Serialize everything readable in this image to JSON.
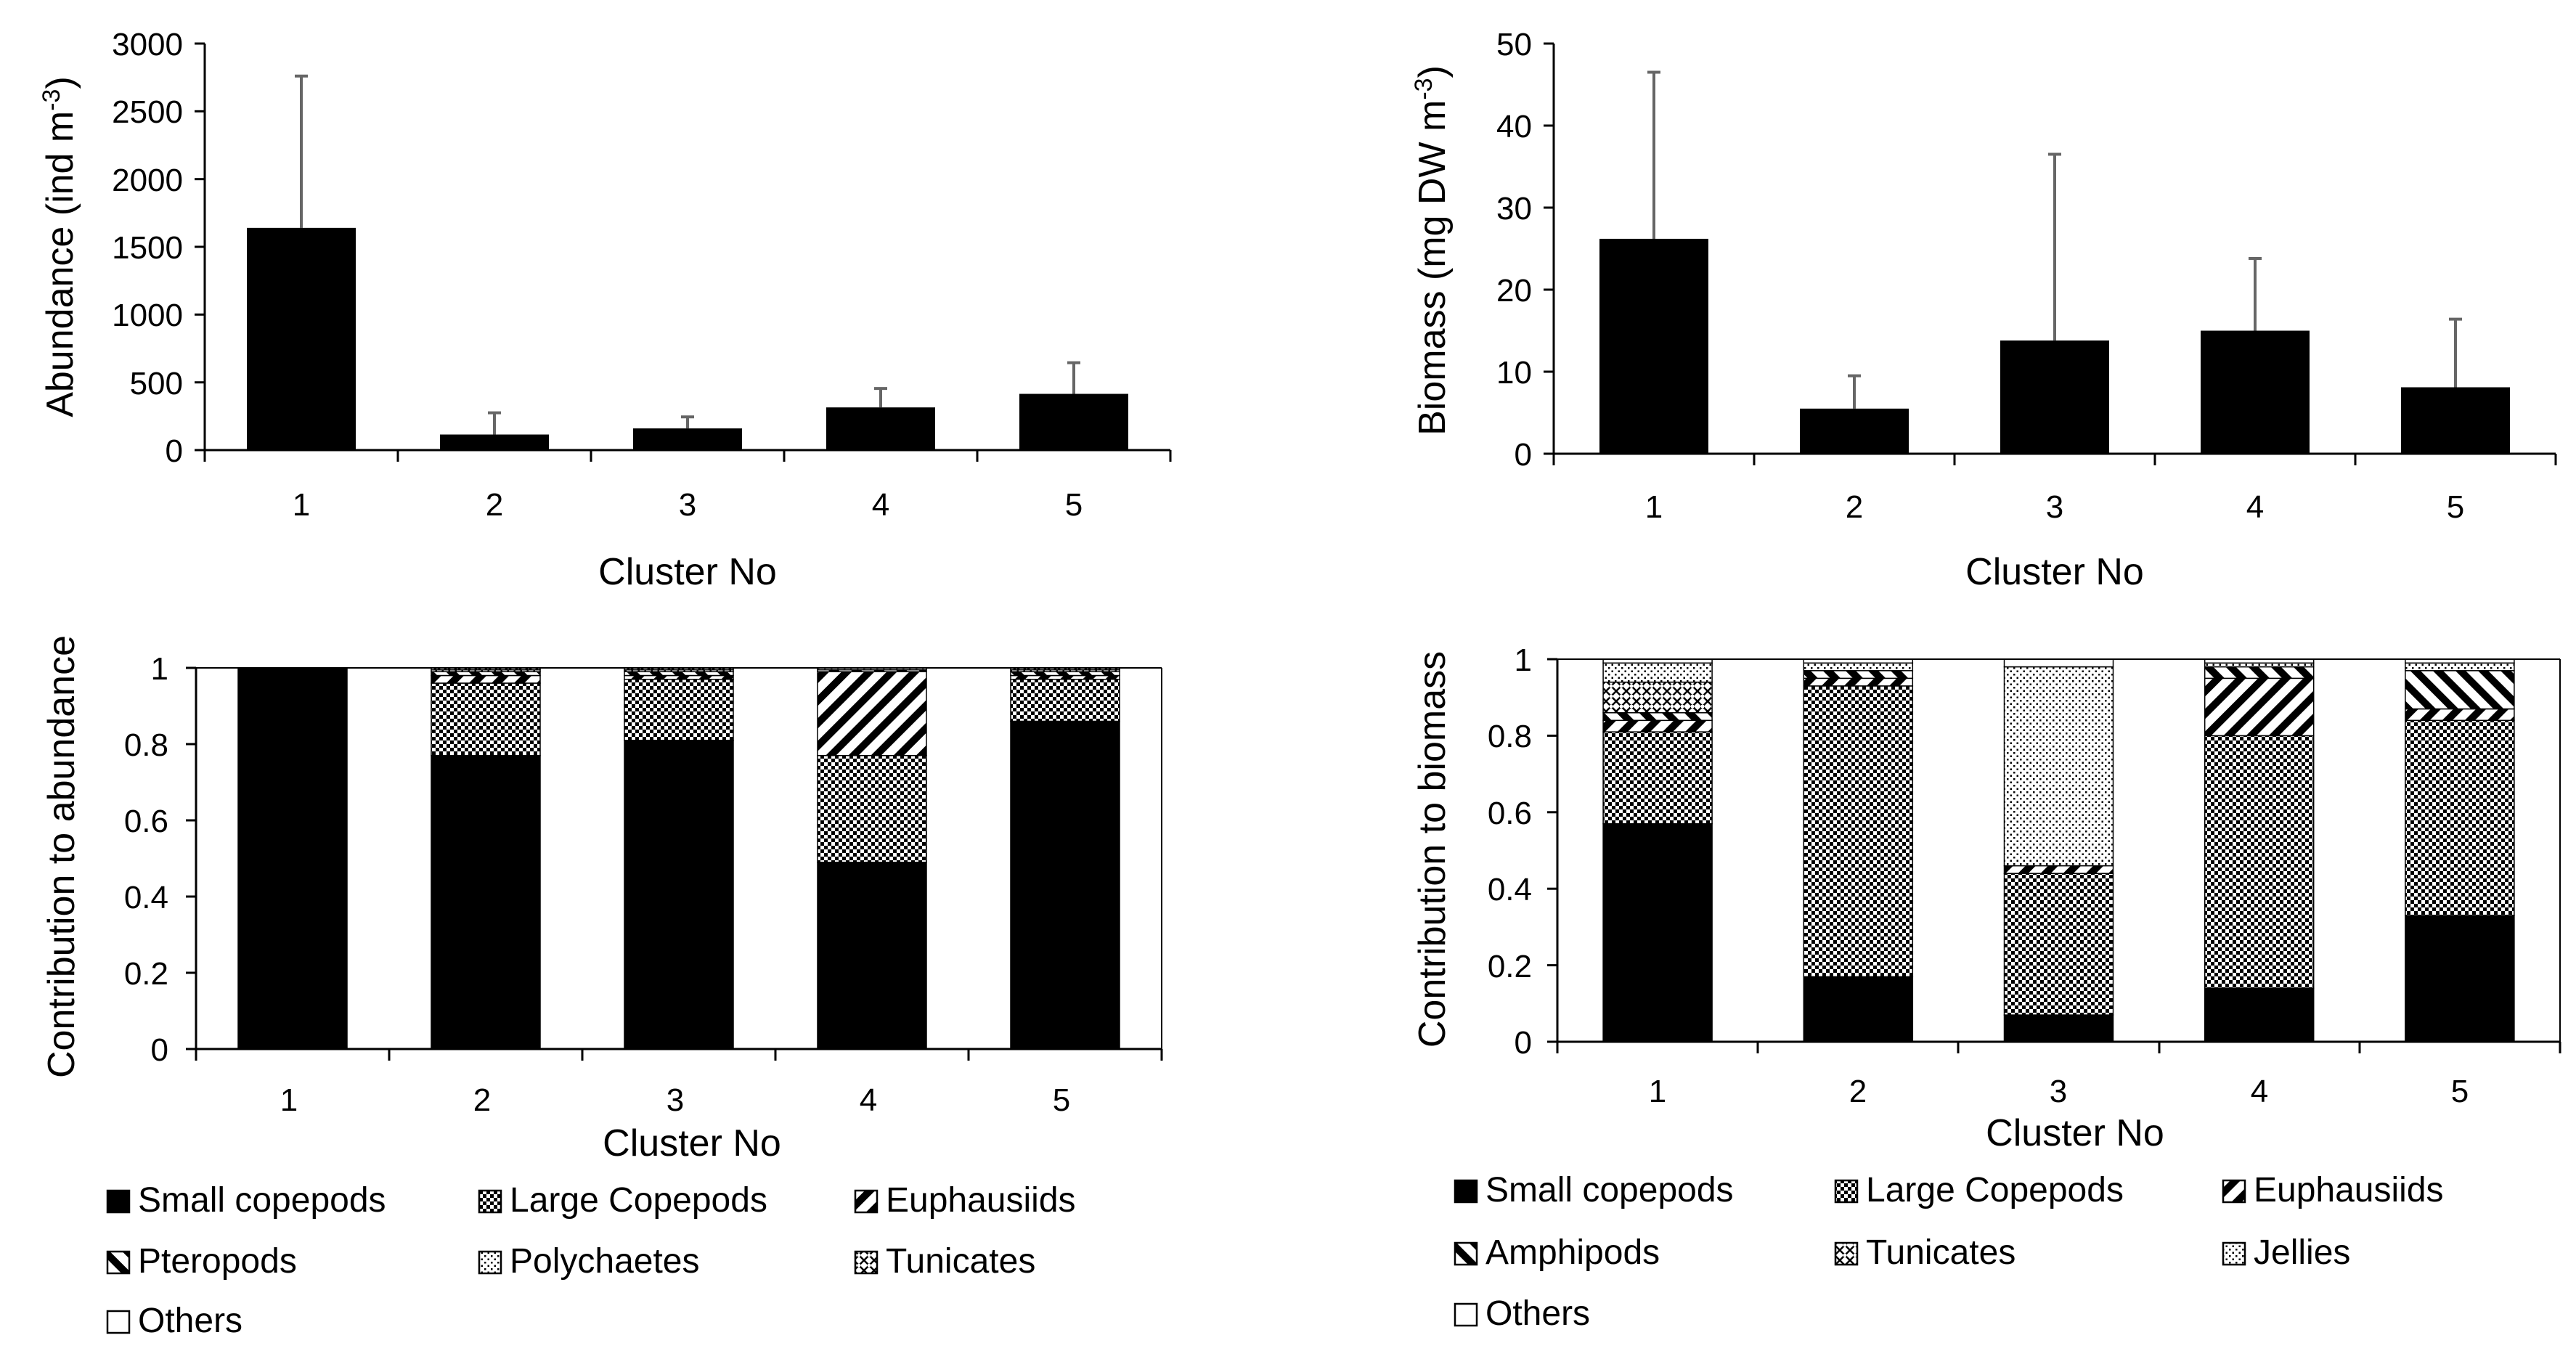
{
  "chart_data": [
    {
      "id": "abundance",
      "type": "bar",
      "categories": [
        "1",
        "2",
        "3",
        "4",
        "5"
      ],
      "values": [
        1640,
        115,
        160,
        315,
        415
      ],
      "error_upper": [
        2760,
        275,
        245,
        455,
        645
      ],
      "xlabel": "Cluster No",
      "ylabel_main": "Abundance (ind m",
      "ylabel_sup": "-3",
      "ylabel_end": ")",
      "ylim": [
        0,
        3000
      ],
      "yticks": [
        "0",
        "500",
        "1000",
        "1500",
        "2000",
        "2500",
        "3000"
      ]
    },
    {
      "id": "biomass",
      "type": "bar",
      "categories": [
        "1",
        "2",
        "3",
        "4",
        "5"
      ],
      "values": [
        26.2,
        5.5,
        13.8,
        15.0,
        8.1
      ],
      "error_upper": [
        46.5,
        9.5,
        36.5,
        23.8,
        16.4
      ],
      "xlabel": "Cluster No",
      "ylabel_main": "Biomass (mg DW m",
      "ylabel_sup": "-3",
      "ylabel_end": ")",
      "ylim": [
        0,
        50
      ],
      "yticks": [
        "0",
        "10",
        "20",
        "30",
        "40",
        "50"
      ]
    },
    {
      "id": "abundance-contribution",
      "type": "bar",
      "stacked": true,
      "categories": [
        "1",
        "2",
        "3",
        "4",
        "5"
      ],
      "xlabel": "Cluster No",
      "ylabel": "Contribution to abundance",
      "ylim": [
        0,
        1
      ],
      "yticks": [
        "0",
        "0.2",
        "0.4",
        "0.6",
        "0.8",
        "1"
      ],
      "series": [
        {
          "name": "Small copepods",
          "pattern": "solid",
          "values": [
            1.0,
            0.77,
            0.81,
            0.49,
            0.86
          ]
        },
        {
          "name": "Large Copepods",
          "pattern": "checker",
          "values": [
            0.0,
            0.19,
            0.16,
            0.28,
            0.11
          ]
        },
        {
          "name": "Euphausiids",
          "pattern": "wide-up",
          "values": [
            0.0,
            0.02,
            0.01,
            0.22,
            0.01
          ]
        },
        {
          "name": "Pteropods",
          "pattern": "wide-down",
          "values": [
            0.0,
            0.01,
            0.01,
            0.005,
            0.01
          ]
        },
        {
          "name": "Polychaetes",
          "pattern": "sparse-dots",
          "values": [
            0.0,
            0.005,
            0.005,
            0.005,
            0.005
          ]
        },
        {
          "name": "Tunicates",
          "pattern": "weave",
          "values": [
            0.0,
            0.005,
            0.005,
            0.0,
            0.005
          ]
        },
        {
          "name": "Others",
          "pattern": "white",
          "values": [
            0.0,
            0.0,
            0.0,
            0.0,
            0.0
          ]
        }
      ]
    },
    {
      "id": "biomass-contribution",
      "type": "bar",
      "stacked": true,
      "categories": [
        "1",
        "2",
        "3",
        "4",
        "5"
      ],
      "xlabel": "Cluster No",
      "ylabel": "Contribution to biomass",
      "ylim": [
        0,
        1
      ],
      "yticks": [
        "0",
        "0.2",
        "0.4",
        "0.6",
        "0.8",
        "1"
      ],
      "series": [
        {
          "name": "Small copepods",
          "pattern": "solid",
          "values": [
            0.57,
            0.17,
            0.07,
            0.14,
            0.33
          ]
        },
        {
          "name": "Large Copepods",
          "pattern": "checker",
          "values": [
            0.24,
            0.76,
            0.37,
            0.66,
            0.51
          ]
        },
        {
          "name": "Euphausiids",
          "pattern": "wide-up",
          "values": [
            0.03,
            0.02,
            0.02,
            0.15,
            0.03
          ]
        },
        {
          "name": "Amphipods",
          "pattern": "wide-down",
          "values": [
            0.02,
            0.02,
            0.0,
            0.03,
            0.1
          ]
        },
        {
          "name": "Tunicates",
          "pattern": "weave",
          "values": [
            0.08,
            0.0,
            0.0,
            0.0,
            0.0
          ]
        },
        {
          "name": "Jellies",
          "pattern": "sparse-dots",
          "values": [
            0.05,
            0.02,
            0.52,
            0.01,
            0.02
          ]
        },
        {
          "name": "Others",
          "pattern": "white",
          "values": [
            0.01,
            0.01,
            0.02,
            0.01,
            0.01
          ]
        }
      ]
    }
  ]
}
